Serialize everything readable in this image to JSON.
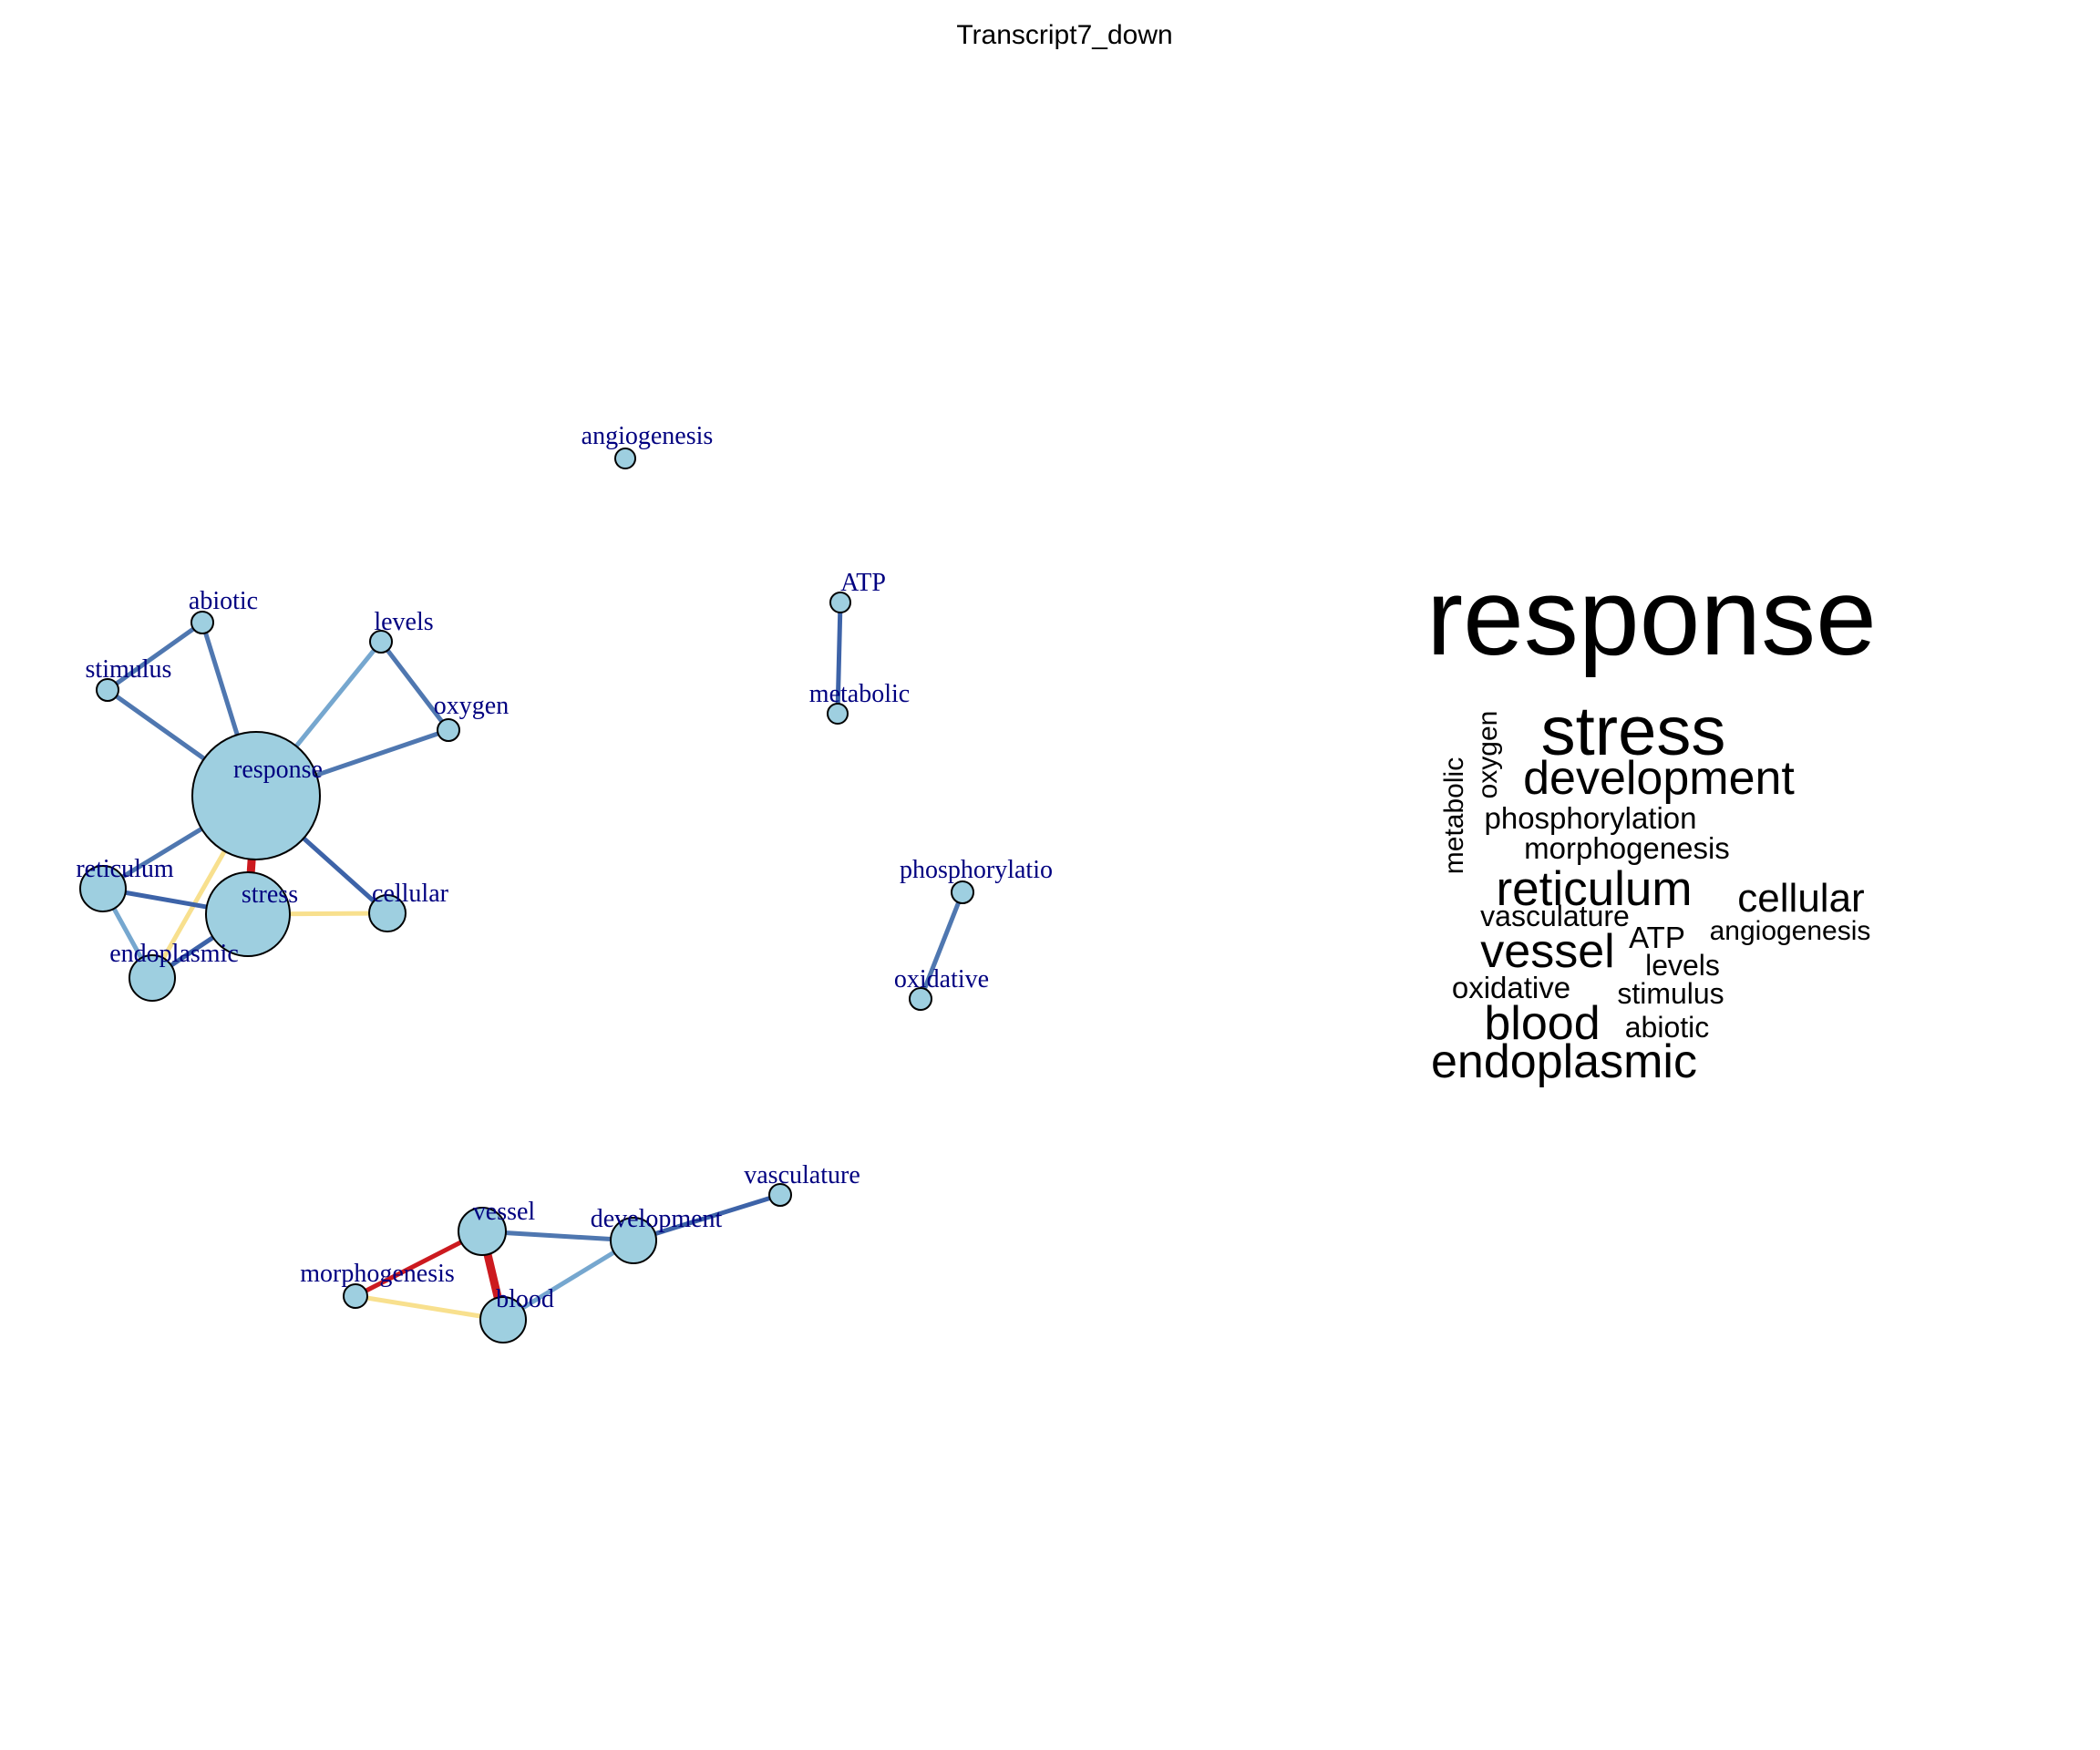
{
  "title": "Transcript7_down",
  "colors": {
    "node_fill": "#9ecfe0",
    "label_color": "#000080",
    "edge_dark_blue": "#3d63a8",
    "edge_blue": "#4f77b0",
    "edge_light_blue": "#76a7cf",
    "edge_red": "#cc1a1f",
    "edge_yellow": "#f8e08e"
  },
  "network": {
    "nodes": [
      {
        "id": "response",
        "label": "response"
      },
      {
        "id": "stress",
        "label": "stress"
      },
      {
        "id": "reticulum",
        "label": "reticulum"
      },
      {
        "id": "endoplasmic",
        "label": "endoplasmic"
      },
      {
        "id": "cellular",
        "label": "cellular"
      },
      {
        "id": "abiotic",
        "label": "abiotic"
      },
      {
        "id": "stimulus",
        "label": "stimulus"
      },
      {
        "id": "levels",
        "label": "levels"
      },
      {
        "id": "oxygen",
        "label": "oxygen"
      },
      {
        "id": "angiogenesis",
        "label": "angiogenesis"
      },
      {
        "id": "ATP",
        "label": "ATP"
      },
      {
        "id": "metabolic",
        "label": "metabolic"
      },
      {
        "id": "phosphorylation",
        "label": "phosphorylatio"
      },
      {
        "id": "oxidative",
        "label": "oxidative"
      },
      {
        "id": "vasculature",
        "label": "vasculature"
      },
      {
        "id": "vessel",
        "label": "vessel"
      },
      {
        "id": "development",
        "label": "development"
      },
      {
        "id": "morphogenesis",
        "label": "morphogenesis"
      },
      {
        "id": "blood",
        "label": "blood"
      }
    ],
    "edges": [
      {
        "from": "response",
        "to": "abiotic",
        "color": "edge_blue"
      },
      {
        "from": "response",
        "to": "stimulus",
        "color": "edge_blue"
      },
      {
        "from": "abiotic",
        "to": "stimulus",
        "color": "edge_blue"
      },
      {
        "from": "response",
        "to": "levels",
        "color": "edge_light_blue"
      },
      {
        "from": "levels",
        "to": "oxygen",
        "color": "edge_blue"
      },
      {
        "from": "response",
        "to": "oxygen",
        "color": "edge_blue"
      },
      {
        "from": "response",
        "to": "reticulum",
        "color": "edge_blue"
      },
      {
        "from": "response",
        "to": "stress",
        "color": "edge_red"
      },
      {
        "from": "response",
        "to": "cellular",
        "color": "edge_dark_blue"
      },
      {
        "from": "response",
        "to": "endoplasmic",
        "color": "edge_yellow"
      },
      {
        "from": "reticulum",
        "to": "stress",
        "color": "edge_dark_blue"
      },
      {
        "from": "reticulum",
        "to": "endoplasmic",
        "color": "edge_light_blue"
      },
      {
        "from": "stress",
        "to": "endoplasmic",
        "color": "edge_dark_blue"
      },
      {
        "from": "stress",
        "to": "cellular",
        "color": "edge_yellow"
      },
      {
        "from": "ATP",
        "to": "metabolic",
        "color": "edge_dark_blue"
      },
      {
        "from": "phosphorylation",
        "to": "oxidative",
        "color": "edge_blue"
      },
      {
        "from": "vessel",
        "to": "development",
        "color": "edge_blue"
      },
      {
        "from": "development",
        "to": "vasculature",
        "color": "edge_dark_blue"
      },
      {
        "from": "vessel",
        "to": "morphogenesis",
        "color": "edge_red"
      },
      {
        "from": "vessel",
        "to": "blood",
        "color": "edge_red"
      },
      {
        "from": "development",
        "to": "blood",
        "color": "edge_light_blue"
      },
      {
        "from": "morphogenesis",
        "to": "blood",
        "color": "edge_yellow"
      }
    ]
  },
  "wordcloud": {
    "words": [
      {
        "text": "response"
      },
      {
        "text": "stress"
      },
      {
        "text": "development"
      },
      {
        "text": "phosphorylation"
      },
      {
        "text": "morphogenesis"
      },
      {
        "text": "reticulum"
      },
      {
        "text": "cellular"
      },
      {
        "text": "vasculature"
      },
      {
        "text": "ATP"
      },
      {
        "text": "angiogenesis"
      },
      {
        "text": "vessel"
      },
      {
        "text": "levels"
      },
      {
        "text": "oxidative"
      },
      {
        "text": "stimulus"
      },
      {
        "text": "blood"
      },
      {
        "text": "abiotic"
      },
      {
        "text": "endoplasmic"
      },
      {
        "text": "metabolic"
      },
      {
        "text": "oxygen"
      }
    ]
  }
}
